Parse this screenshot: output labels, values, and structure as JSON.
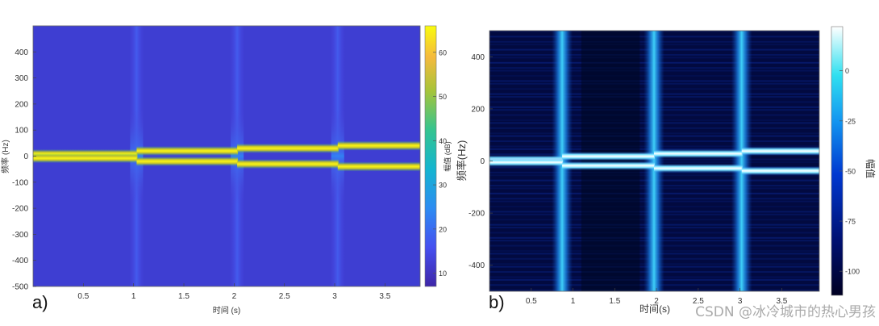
{
  "chart_data": [
    {
      "type": "heatmap",
      "panel_label": "a)",
      "xlabel": "时间 (s)",
      "ylabel": "频率 (Hz)",
      "colorbar_label": "幅值 (dB)",
      "xlim": [
        0,
        3.85
      ],
      "ylim": [
        -500,
        500
      ],
      "x_ticks": [
        "0.5",
        "1",
        "1.5",
        "2",
        "2.5",
        "3",
        "3.5"
      ],
      "x_tick_values": [
        0.5,
        1,
        1.5,
        2,
        2.5,
        3,
        3.5
      ],
      "y_ticks": [
        "400",
        "300",
        "200",
        "100",
        "0",
        "-100",
        "-200",
        "-300",
        "-400",
        "-500"
      ],
      "y_tick_values": [
        400,
        300,
        200,
        100,
        0,
        -100,
        -200,
        -300,
        -400,
        -500
      ],
      "colorbar_ticks": [
        "60",
        "50",
        "40",
        "30",
        "20",
        "10"
      ],
      "colorbar_tick_values": [
        60,
        50,
        40,
        30,
        20,
        10
      ],
      "colorbar_range": [
        7,
        66
      ],
      "colormap": "parula",
      "transitions_s": [
        1.03,
        2.03,
        3.03
      ],
      "ridges": [
        {
          "segments": [
            [
              0,
              1.03,
              8
            ],
            [
              1.03,
              2.03,
              20
            ],
            [
              2.03,
              3.03,
              30
            ],
            [
              3.03,
              3.85,
              40
            ]
          ]
        },
        {
          "segments": [
            [
              0,
              1.03,
              -8
            ],
            [
              1.03,
              2.03,
              -20
            ],
            [
              2.03,
              3.03,
              -30
            ],
            [
              3.03,
              3.85,
              -40
            ]
          ]
        }
      ]
    },
    {
      "type": "heatmap",
      "panel_label": "b)",
      "xlabel": "时间(s)",
      "ylabel": "频率(Hz)",
      "colorbar_label": "幅值",
      "xlim": [
        0,
        3.95
      ],
      "ylim": [
        -500,
        500
      ],
      "x_ticks": [
        "0.5",
        "1",
        "1.5",
        "2",
        "2.5",
        "3",
        "3.5"
      ],
      "x_tick_values": [
        0.5,
        1,
        1.5,
        2,
        2.5,
        3,
        3.5
      ],
      "y_ticks": [
        "400",
        "200",
        "0",
        "-200",
        "-400"
      ],
      "y_tick_values": [
        400,
        200,
        0,
        -200,
        -400
      ],
      "colorbar_ticks": [
        "0",
        "-25",
        "-50",
        "-75",
        "-100"
      ],
      "colorbar_tick_values": [
        0,
        -25,
        -50,
        -75,
        -100
      ],
      "colorbar_range": [
        -112,
        22
      ],
      "colormap": "dark-blue-cyan-white",
      "transitions_s": [
        0.87,
        1.97,
        3.02
      ],
      "ridges": [
        {
          "segments": [
            [
              0,
              0.87,
              5
            ],
            [
              0.87,
              1.97,
              18
            ],
            [
              1.97,
              3.02,
              28
            ],
            [
              3.02,
              3.95,
              38
            ]
          ]
        },
        {
          "segments": [
            [
              0,
              0.87,
              -5
            ],
            [
              0.87,
              1.97,
              -18
            ],
            [
              1.97,
              3.02,
              -28
            ],
            [
              3.02,
              3.95,
              -38
            ]
          ]
        }
      ]
    }
  ],
  "watermark": "CSDN @冰冷城市的热心男孩"
}
